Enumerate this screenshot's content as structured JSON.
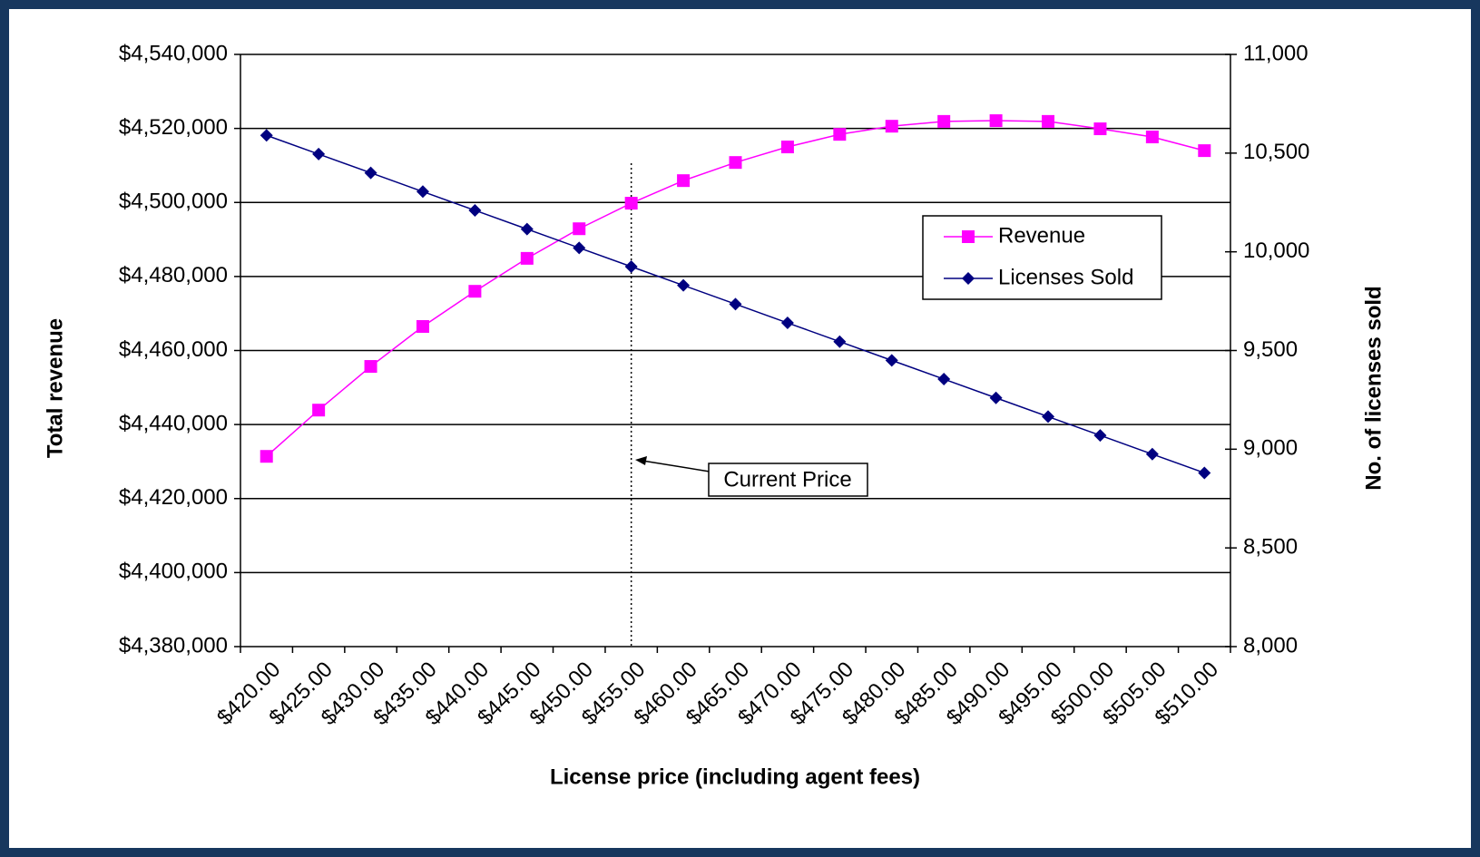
{
  "chart_data": {
    "type": "line",
    "x_label": "License price (including agent fees)",
    "y_label": "Total revenue",
    "y2_label": "No. of licenses sold",
    "annotation": "Current Price",
    "categories": [
      "$420.00",
      "$425.00",
      "$430.00",
      "$435.00",
      "$440.00",
      "$445.00",
      "$450.00",
      "$455.00",
      "$460.00",
      "$465.00",
      "$470.00",
      "$475.00",
      "$480.00",
      "$485.00",
      "$490.00",
      "$495.00",
      "$500.00",
      "$505.00",
      "$510.00"
    ],
    "series": [
      {
        "name": "Revenue",
        "color": "#ff00ff",
        "marker": "square",
        "values": [
          4431400,
          4443900,
          4455700,
          4466500,
          4476000,
          4484900,
          4492900,
          4499800,
          4505900,
          4510800,
          4515000,
          4518400,
          4520600,
          4521900,
          4522100,
          4521900,
          4519900,
          4517700,
          4514000
        ]
      },
      {
        "name": "Licenses Sold",
        "color": "#000080",
        "marker": "diamond",
        "axis": "y2",
        "values": [
          10590,
          10495,
          10400,
          10305,
          10210,
          10115,
          10020,
          9925,
          9830,
          9735,
          9640,
          9545,
          9450,
          9355,
          9260,
          9165,
          9070,
          8975,
          8880
        ]
      }
    ],
    "ylim": [
      4380000,
      4540000
    ],
    "yticks": [
      {
        "value": 4380000,
        "label": "$4,380,000"
      },
      {
        "value": 4400000,
        "label": "$4,400,000"
      },
      {
        "value": 4420000,
        "label": "$4,420,000"
      },
      {
        "value": 4440000,
        "label": "$4,440,000"
      },
      {
        "value": 4460000,
        "label": "$4,460,000"
      },
      {
        "value": 4480000,
        "label": "$4,480,000"
      },
      {
        "value": 4500000,
        "label": "$4,500,000"
      },
      {
        "value": 4520000,
        "label": "$4,520,000"
      },
      {
        "value": 4540000,
        "label": "$4,540,000"
      }
    ],
    "y2lim": [
      8000,
      11000
    ],
    "y2ticks": [
      {
        "value": 8000,
        "label": "8,000"
      },
      {
        "value": 8500,
        "label": "8,500"
      },
      {
        "value": 9000,
        "label": "9,000"
      },
      {
        "value": 9500,
        "label": "9,500"
      },
      {
        "value": 10000,
        "label": "10,000"
      },
      {
        "value": 10500,
        "label": "10,500"
      },
      {
        "value": 11000,
        "label": "11,000"
      }
    ],
    "grid": true
  }
}
